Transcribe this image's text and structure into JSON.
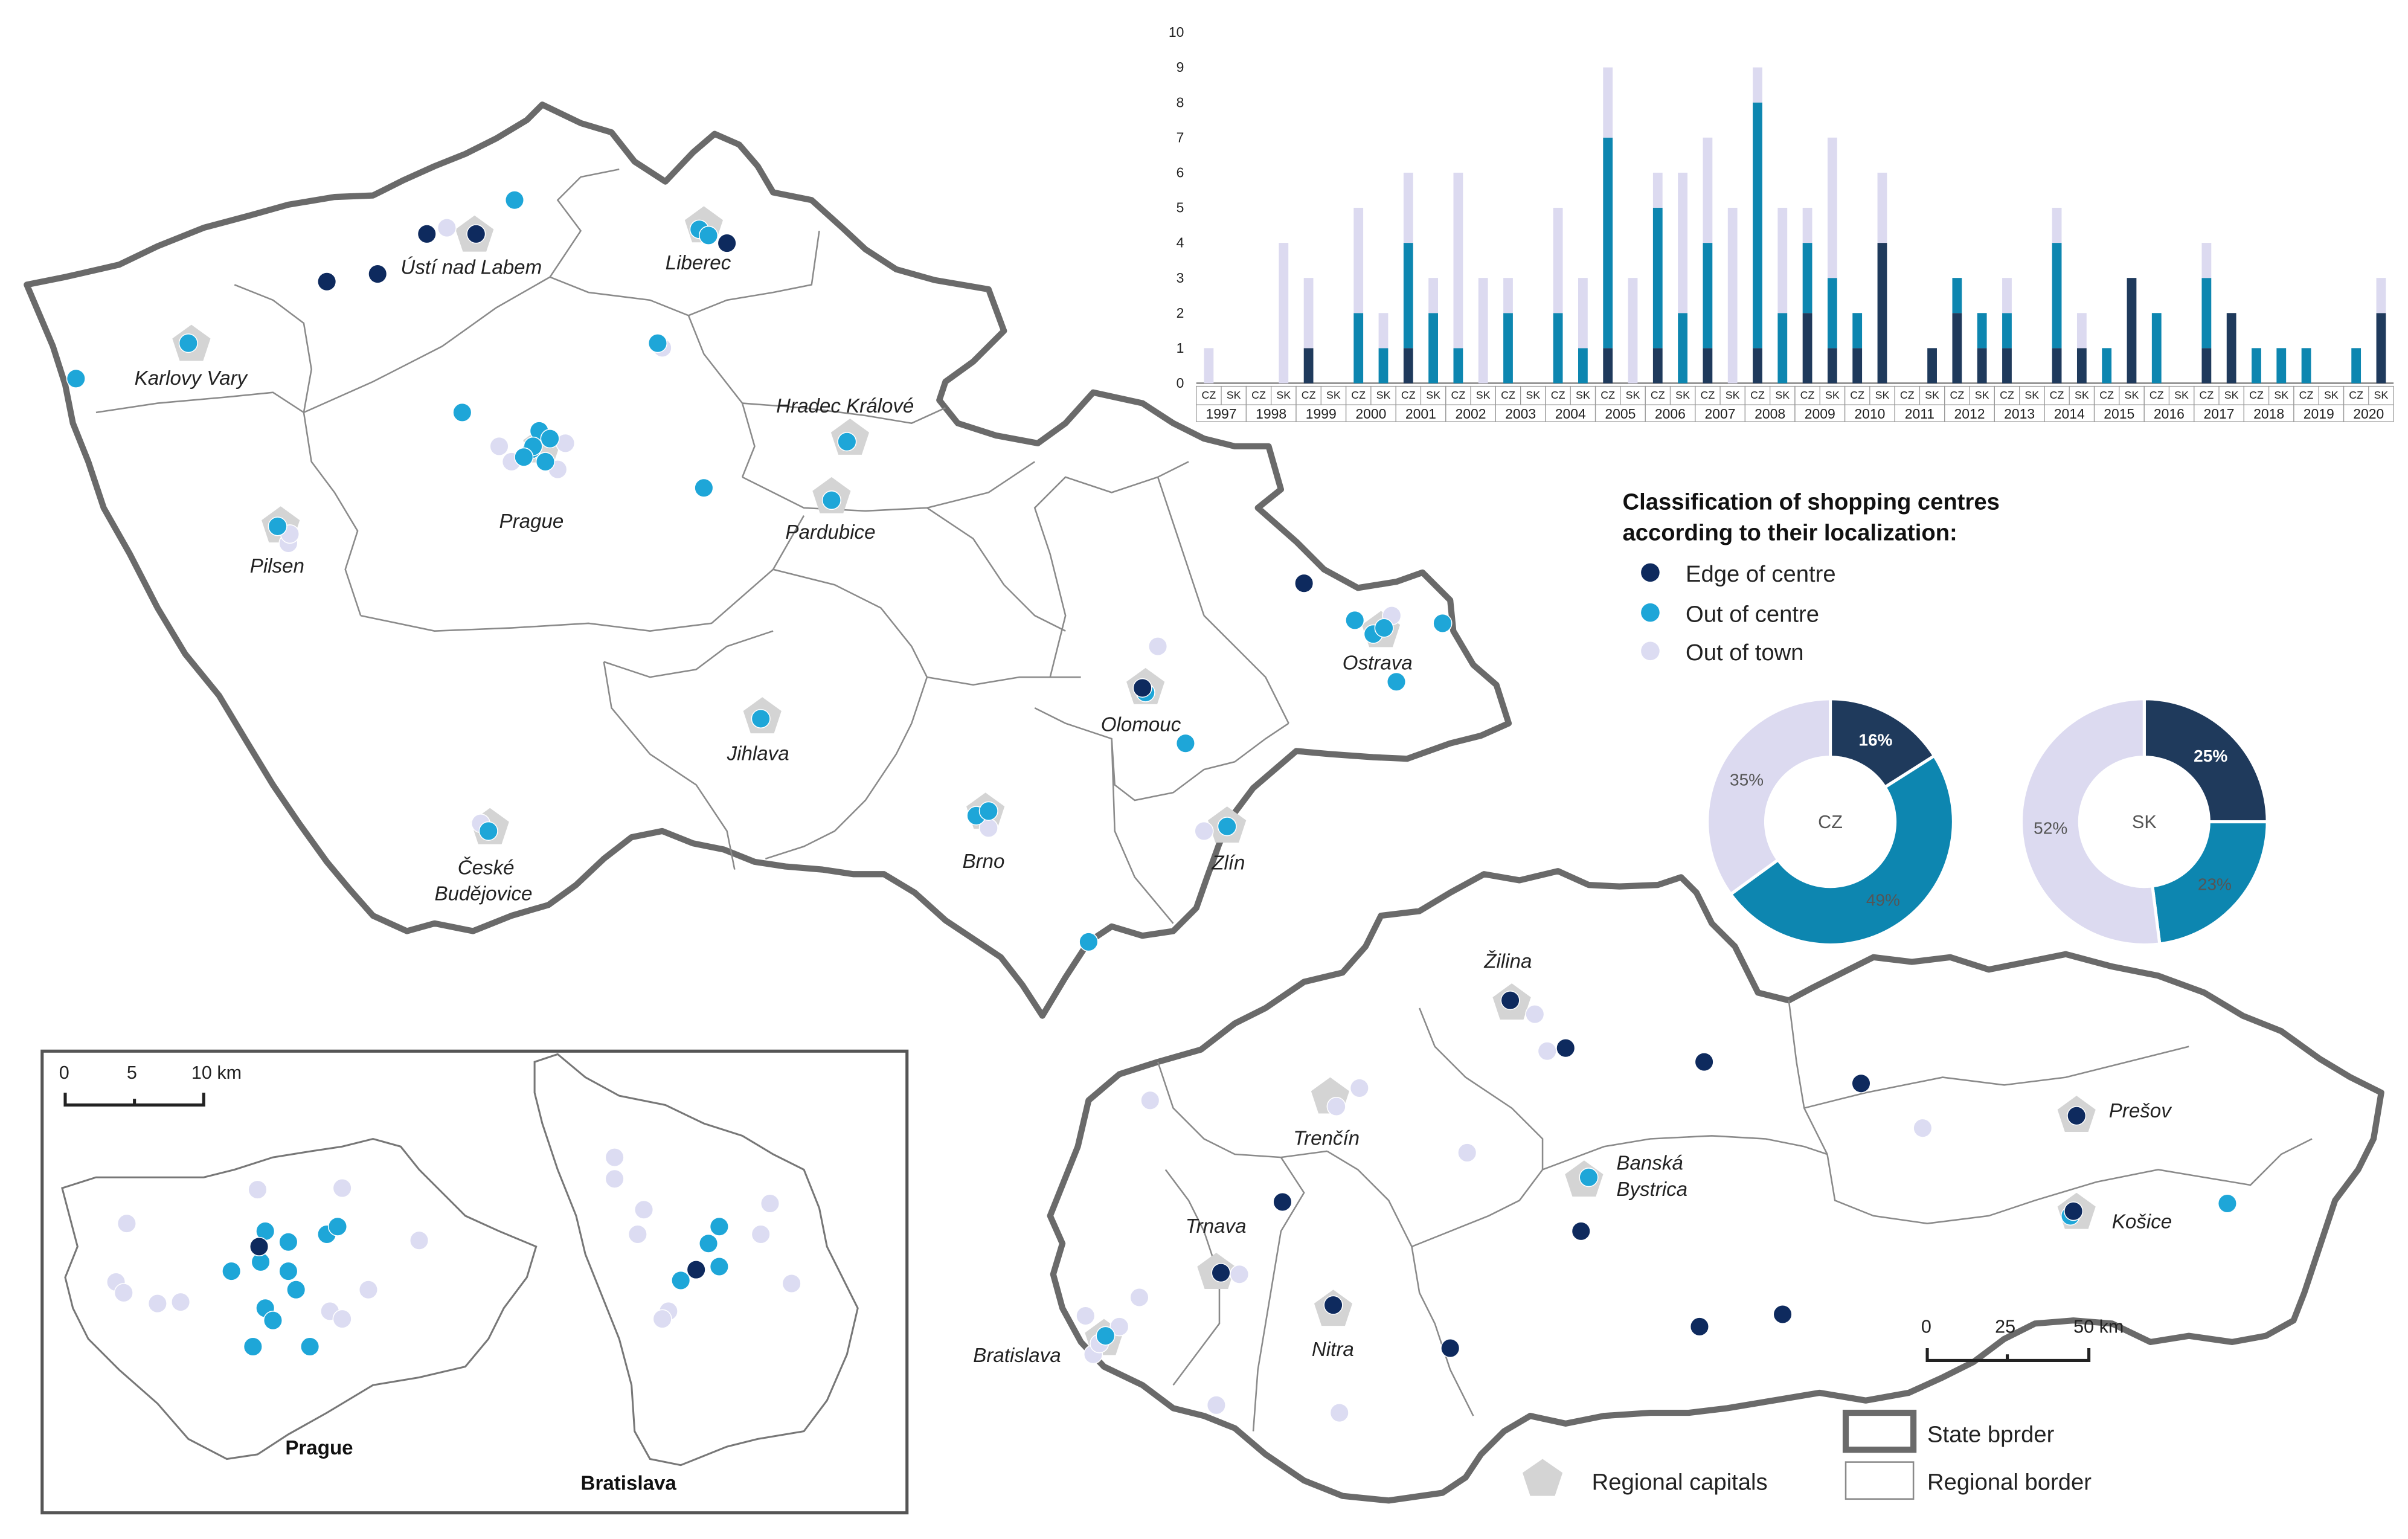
{
  "colors": {
    "edge": "#0e2a5e",
    "out": "#1ea6d8",
    "town": "#dcdcf2",
    "state_border": "#6a6a6a",
    "region_border": "#8a8a8a",
    "bar_edge": "#1f3a5c",
    "bar_out": "#0d86b0",
    "bar_town": "#dcdaf0",
    "capital": "#d4d4d4"
  },
  "legend": {
    "title_line1": "Classification of shopping centres",
    "title_line2": "according to their localization:",
    "edge": "Edge of centre",
    "out": "Out of centre",
    "town": "Out of town",
    "regional_capitals": "Regional capitals",
    "state_border": "State bprder",
    "regional_border": "Regional border"
  },
  "scale_main": {
    "t0": "0",
    "t1": "25",
    "t2": "50 km"
  },
  "scale_inset": {
    "t0": "0",
    "t1": "5",
    "t2": "10 km"
  },
  "cz_cities": [
    "Ústí nad Labem",
    "Liberec",
    "Karlovy Vary",
    "Hradec Králové",
    "Prague",
    "Pardubice",
    "Pilsen",
    "Ostrava",
    "Olomouc",
    "Jihlava",
    "Brno",
    "Zlín",
    "České",
    "Budějovice"
  ],
  "sk_cities": [
    "Žilina",
    "Prešov",
    "Trenčín",
    "Banská",
    "Bystrica",
    "Trnava",
    "Košice",
    "Nitra",
    "Bratislava"
  ],
  "inset": {
    "prague": "Prague",
    "bratislava": "Bratislava"
  },
  "chart_data": [
    {
      "type": "bar",
      "stacked": true,
      "y_ticks": [
        "0",
        "1",
        "2",
        "3",
        "4",
        "5",
        "6",
        "7",
        "8",
        "9",
        "10"
      ],
      "ylim": [
        0,
        10
      ],
      "years": [
        "1997",
        "1998",
        "1999",
        "2000",
        "2001",
        "2002",
        "2003",
        "2004",
        "2005",
        "2006",
        "2007",
        "2008",
        "2009",
        "2010",
        "2011",
        "2012",
        "2013",
        "2014",
        "2015",
        "2016",
        "2017",
        "2018",
        "2019",
        "2020"
      ],
      "countries": [
        "CZ",
        "SK"
      ],
      "series": [
        {
          "name": "Edge of centre",
          "values": [
            [
              0,
              0
            ],
            [
              0,
              0
            ],
            [
              1,
              0
            ],
            [
              0,
              0
            ],
            [
              1,
              0
            ],
            [
              0,
              0
            ],
            [
              0,
              0
            ],
            [
              0,
              0
            ],
            [
              1,
              0
            ],
            [
              1,
              0
            ],
            [
              1,
              0
            ],
            [
              1,
              0
            ],
            [
              2,
              1
            ],
            [
              1,
              4
            ],
            [
              0,
              1
            ],
            [
              2,
              1
            ],
            [
              1,
              0
            ],
            [
              1,
              1
            ],
            [
              0,
              3
            ],
            [
              0,
              0
            ],
            [
              1,
              2
            ],
            [
              0,
              0
            ],
            [
              0,
              0
            ],
            [
              0,
              2
            ]
          ]
        },
        {
          "name": "Out of centre",
          "values": [
            [
              0,
              0
            ],
            [
              0,
              0
            ],
            [
              0,
              0
            ],
            [
              2,
              1
            ],
            [
              3,
              2
            ],
            [
              1,
              0
            ],
            [
              2,
              0
            ],
            [
              2,
              1
            ],
            [
              6,
              0
            ],
            [
              4,
              2
            ],
            [
              3,
              0
            ],
            [
              7,
              2
            ],
            [
              2,
              2
            ],
            [
              1,
              0
            ],
            [
              0,
              0
            ],
            [
              1,
              1
            ],
            [
              1,
              0
            ],
            [
              3,
              0
            ],
            [
              1,
              0
            ],
            [
              2,
              0
            ],
            [
              2,
              0
            ],
            [
              1,
              1
            ],
            [
              1,
              0
            ],
            [
              1,
              0
            ]
          ]
        },
        {
          "name": "Out of town",
          "values": [
            [
              1,
              0
            ],
            [
              0,
              4
            ],
            [
              2,
              0
            ],
            [
              3,
              1
            ],
            [
              2,
              1
            ],
            [
              5,
              3
            ],
            [
              1,
              0
            ],
            [
              3,
              2
            ],
            [
              2,
              3
            ],
            [
              1,
              4
            ],
            [
              3,
              5
            ],
            [
              1,
              3
            ],
            [
              1,
              4
            ],
            [
              0,
              2
            ],
            [
              0,
              0
            ],
            [
              0,
              0
            ],
            [
              1,
              0
            ],
            [
              1,
              1
            ],
            [
              0,
              0
            ],
            [
              0,
              0
            ],
            [
              1,
              0
            ],
            [
              0,
              0
            ],
            [
              0,
              0
            ],
            [
              0,
              1
            ]
          ]
        }
      ]
    },
    {
      "type": "pie",
      "donut": true,
      "center_label": "CZ",
      "slices": [
        {
          "label": "Edge of centre",
          "value": 16,
          "text": "16%"
        },
        {
          "label": "Out of centre",
          "value": 49,
          "text": "49%"
        },
        {
          "label": "Out of town",
          "value": 35,
          "text": "35%"
        }
      ]
    },
    {
      "type": "pie",
      "donut": true,
      "center_label": "SK",
      "slices": [
        {
          "label": "Edge of centre",
          "value": 25,
          "text": "25%"
        },
        {
          "label": "Out of centre",
          "value": 23,
          "text": "23%"
        },
        {
          "label": "Out of town",
          "value": 52,
          "text": "52%"
        }
      ]
    }
  ]
}
